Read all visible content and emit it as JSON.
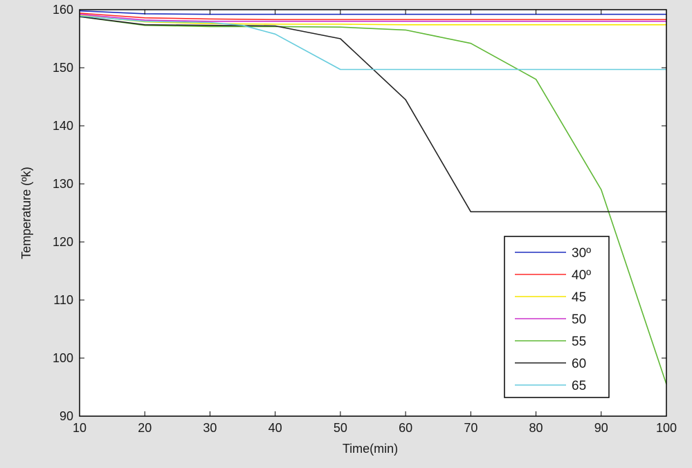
{
  "chart_data": {
    "type": "line",
    "title": "",
    "xlabel": "Time(min)",
    "ylabel": "Temperature (ºk)",
    "xlim": [
      10,
      100
    ],
    "ylim": [
      90,
      160
    ],
    "xticks": [
      10,
      20,
      30,
      40,
      50,
      60,
      70,
      80,
      90,
      100
    ],
    "yticks": [
      90,
      100,
      110,
      120,
      130,
      140,
      150,
      160
    ],
    "grid": false,
    "legend_position": "lower-right",
    "series": [
      {
        "name": "30º",
        "color": "#1f2fbf",
        "x": [
          10,
          20,
          30,
          40,
          50,
          60,
          70,
          80,
          90,
          100
        ],
        "y": [
          159.8,
          159.3,
          159.2,
          159.2,
          159.2,
          159.2,
          159.2,
          159.2,
          159.2,
          159.2
        ]
      },
      {
        "name": "40º",
        "color": "#ff2a2a",
        "x": [
          10,
          20,
          30,
          40,
          50,
          60,
          70,
          80,
          90,
          100
        ],
        "y": [
          159.4,
          158.6,
          158.4,
          158.3,
          158.3,
          158.3,
          158.3,
          158.3,
          158.3,
          158.3
        ]
      },
      {
        "name": "45",
        "color": "#f5e600",
        "x": [
          10,
          20,
          30,
          40,
          50,
          60,
          70,
          80,
          90,
          100
        ],
        "y": [
          159.0,
          157.9,
          157.6,
          157.5,
          157.5,
          157.4,
          157.4,
          157.4,
          157.4,
          157.4
        ]
      },
      {
        "name": "50",
        "color": "#cc33cc",
        "x": [
          10,
          20,
          30,
          40,
          50,
          60,
          70,
          80,
          90,
          100
        ],
        "y": [
          159.2,
          158.2,
          158.0,
          158.0,
          158.0,
          158.0,
          158.0,
          158.0,
          158.0,
          158.0
        ]
      },
      {
        "name": "55",
        "color": "#5fb835",
        "x": [
          10,
          20,
          30,
          40,
          50,
          60,
          70,
          80,
          90,
          100
        ],
        "y": [
          158.8,
          157.3,
          157.1,
          157.1,
          157.0,
          156.5,
          154.2,
          148.0,
          129.0,
          95.5
        ]
      },
      {
        "name": "60",
        "color": "#222222",
        "x": [
          10,
          20,
          30,
          40,
          50,
          60,
          70,
          80,
          90,
          100
        ],
        "y": [
          158.8,
          157.4,
          157.3,
          157.2,
          155.0,
          144.5,
          125.2,
          125.2,
          125.2,
          125.2
        ]
      },
      {
        "name": "65",
        "color": "#66ccdd",
        "x": [
          10,
          20,
          30,
          35,
          40,
          50,
          60,
          70,
          80,
          90,
          100
        ],
        "y": [
          158.9,
          158.0,
          157.8,
          157.3,
          155.8,
          149.7,
          149.7,
          149.7,
          149.7,
          149.7,
          149.7
        ]
      }
    ]
  }
}
